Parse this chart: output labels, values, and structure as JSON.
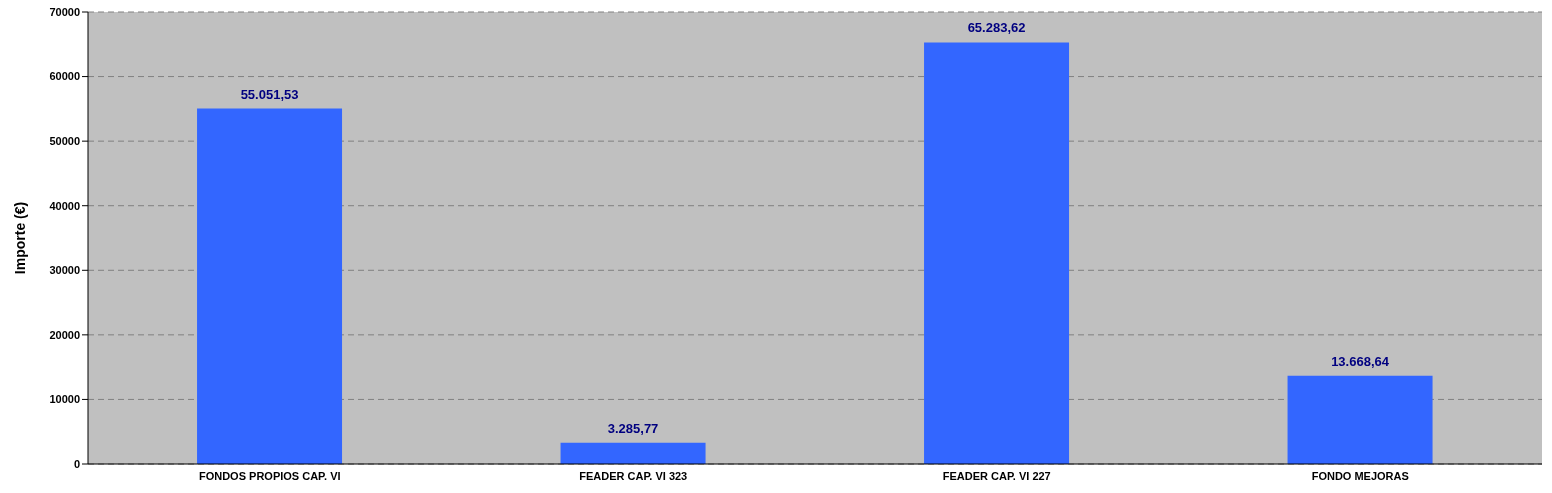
{
  "chart_data": {
    "type": "bar",
    "ylabel": "Importe (€)",
    "categories": [
      "FONDOS PROPIOS CAP. VI",
      "FEADER CAP. VI 323",
      "FEADER CAP. VI 227",
      "FONDO MEJORAS"
    ],
    "values": [
      55051.53,
      3285.77,
      65283.62,
      13668.64
    ],
    "value_labels": [
      "55.051,53",
      "3.285,77",
      "65.283,62",
      "13.668,64"
    ],
    "color": "#3366ff",
    "ylim": [
      0,
      70000
    ],
    "yticks": [
      0,
      10000,
      20000,
      30000,
      40000,
      50000,
      60000,
      70000
    ],
    "grid": "y"
  }
}
